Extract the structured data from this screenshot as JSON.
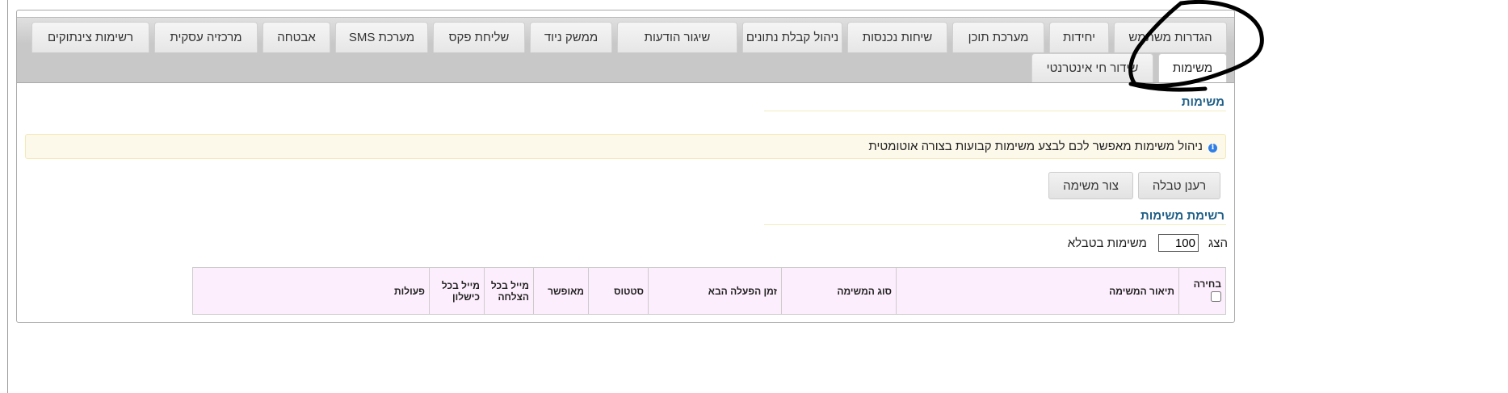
{
  "tabs_row1": [
    "הגדרות משתמש",
    "יחידות",
    "מערכת תוכן",
    "שיחות נכנסות",
    "ניהול קבלת נתונים",
    "שיגור הודעות",
    "ממשק ניוד",
    "שליחת פקס",
    "מערכת SMS",
    "אבטחה",
    "מרכזיה עסקית",
    "רשימות צינתוקים"
  ],
  "tabs_row2": [
    "משימות",
    "שידור חי אינטרנטי"
  ],
  "active_tab": "משימות",
  "section_title": "משימות",
  "info_text": "ניהול משימות מאפשר לכם לבצע משימות קבועות בצורה אוטומטית",
  "buttons": {
    "refresh": "רענן טבלה",
    "create": "צור משימה"
  },
  "list_title": "רשימת משימות",
  "show": {
    "label": "הצג",
    "value": "100",
    "suffix": "משימות בטבלא"
  },
  "table": {
    "headers": [
      "בחירה",
      "תיאור המשימה",
      "סוג המשימה",
      "זמן הפעלה הבא",
      "סטטוס",
      "מאופשר",
      "מייל בכל הצלחה",
      "מייל בכל כישלון",
      "פעולות"
    ]
  },
  "colors": {
    "heading": "#1f5f87",
    "tabbar": "#c8c8c8",
    "info_bg": "#fcf8ea",
    "table_header_bg": "#fdeefd",
    "annotation": "#000000"
  }
}
